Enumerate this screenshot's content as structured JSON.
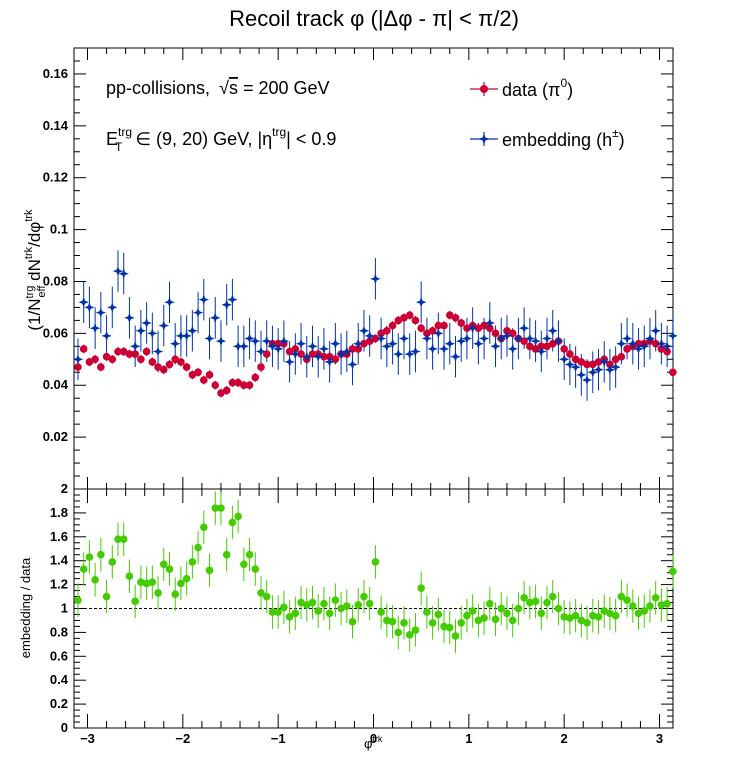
{
  "title": "Recoil track φ (|Δφ - π| < π/2)",
  "chart_data": [
    {
      "type": "scatter",
      "panel": "top",
      "ylabel": "(1/N_eff^trg) dN^trk/dφ^trk",
      "ylabel_parts": {
        "a": "(1/N",
        "b": "trg",
        "c": "eff",
        "d": " dN",
        "e": "trk",
        "f": "/dφ",
        "g": "trk"
      },
      "xlim": [
        -3.1416,
        3.1416
      ],
      "ylim": [
        0,
        0.17
      ],
      "yticks": [
        "0.02",
        "0.04",
        "0.06",
        "0.08",
        "0.1",
        "0.12",
        "0.14",
        "0.16"
      ],
      "ytick_values": [
        0.02,
        0.04,
        0.06,
        0.08,
        0.1,
        0.12,
        0.14,
        0.16
      ],
      "annotations": {
        "line1_a": "pp-collisions,",
        "line1_sqrt": "√",
        "line1_s": "s",
        "line1_b": " = 200 GeV",
        "line2_E": "E",
        "line2_T": "T",
        "line2_trg": "trg",
        "line2_mid": " ∈ (9, 20) GeV, |η",
        "line2_trg2": "trg",
        "line2_end": "| < 0.9"
      },
      "legend_placement": "top-right",
      "series": [
        {
          "name": "data (π⁰)",
          "legend_main": "data (π",
          "legend_sup": "0",
          "legend_end": ")",
          "color": "#cc0033",
          "marker": "circle",
          "x": [
            -3.1,
            -3.04,
            -2.98,
            -2.92,
            -2.86,
            -2.8,
            -2.74,
            -2.68,
            -2.62,
            -2.56,
            -2.5,
            -2.44,
            -2.38,
            -2.32,
            -2.26,
            -2.2,
            -2.14,
            -2.08,
            -2.02,
            -1.96,
            -1.9,
            -1.84,
            -1.78,
            -1.72,
            -1.66,
            -1.6,
            -1.54,
            -1.48,
            -1.42,
            -1.36,
            -1.3,
            -1.24,
            -1.18,
            -1.12,
            -1.06,
            -1.0,
            -0.94,
            -0.88,
            -0.82,
            -0.76,
            -0.7,
            -0.64,
            -0.58,
            -0.52,
            -0.46,
            -0.4,
            -0.34,
            -0.28,
            -0.22,
            -0.16,
            -0.1,
            -0.04,
            0.02,
            0.08,
            0.14,
            0.2,
            0.26,
            0.32,
            0.38,
            0.44,
            0.5,
            0.56,
            0.62,
            0.68,
            0.74,
            0.8,
            0.86,
            0.92,
            0.98,
            1.04,
            1.1,
            1.16,
            1.22,
            1.28,
            1.34,
            1.4,
            1.46,
            1.52,
            1.58,
            1.64,
            1.7,
            1.76,
            1.82,
            1.88,
            1.94,
            2.0,
            2.06,
            2.12,
            2.18,
            2.24,
            2.3,
            2.36,
            2.42,
            2.48,
            2.54,
            2.6,
            2.66,
            2.72,
            2.78,
            2.84,
            2.9,
            2.96,
            3.02,
            3.08,
            3.14
          ],
          "y": [
            0.047,
            0.054,
            0.049,
            0.05,
            0.047,
            0.051,
            0.05,
            0.053,
            0.053,
            0.052,
            0.052,
            0.05,
            0.053,
            0.049,
            0.047,
            0.046,
            0.048,
            0.05,
            0.049,
            0.047,
            0.044,
            0.045,
            0.042,
            0.044,
            0.04,
            0.037,
            0.038,
            0.041,
            0.041,
            0.04,
            0.04,
            0.043,
            0.047,
            0.052,
            0.056,
            0.056,
            0.056,
            0.053,
            0.054,
            0.052,
            0.05,
            0.052,
            0.052,
            0.051,
            0.051,
            0.05,
            0.052,
            0.052,
            0.054,
            0.054,
            0.056,
            0.057,
            0.058,
            0.06,
            0.061,
            0.063,
            0.065,
            0.066,
            0.067,
            0.065,
            0.062,
            0.06,
            0.061,
            0.063,
            0.063,
            0.067,
            0.066,
            0.064,
            0.062,
            0.063,
            0.062,
            0.063,
            0.062,
            0.06,
            0.058,
            0.061,
            0.06,
            0.058,
            0.057,
            0.055,
            0.054,
            0.055,
            0.055,
            0.056,
            0.057,
            0.054,
            0.052,
            0.05,
            0.049,
            0.048,
            0.048,
            0.049,
            0.05,
            0.048,
            0.05,
            0.051,
            0.054,
            0.055,
            0.056,
            0.056,
            0.057,
            0.056,
            0.054,
            0.053,
            0.045
          ],
          "yerr": 0.0017
        },
        {
          "name": "embedding (h±)",
          "legend_main": "embedding (h",
          "legend_sup": "±",
          "legend_end": ")",
          "color": "#0033aa",
          "marker": "star",
          "x": [
            -3.1,
            -3.04,
            -2.98,
            -2.92,
            -2.86,
            -2.8,
            -2.74,
            -2.68,
            -2.62,
            -2.56,
            -2.5,
            -2.44,
            -2.38,
            -2.32,
            -2.26,
            -2.2,
            -2.14,
            -2.08,
            -2.02,
            -1.96,
            -1.9,
            -1.84,
            -1.78,
            -1.72,
            -1.66,
            -1.6,
            -1.54,
            -1.48,
            -1.42,
            -1.36,
            -1.3,
            -1.24,
            -1.18,
            -1.12,
            -1.06,
            -1.0,
            -0.94,
            -0.88,
            -0.82,
            -0.76,
            -0.7,
            -0.64,
            -0.58,
            -0.52,
            -0.46,
            -0.4,
            -0.34,
            -0.28,
            -0.22,
            -0.16,
            -0.1,
            -0.04,
            0.02,
            0.08,
            0.14,
            0.2,
            0.26,
            0.32,
            0.38,
            0.44,
            0.5,
            0.56,
            0.62,
            0.68,
            0.74,
            0.8,
            0.86,
            0.92,
            0.98,
            1.04,
            1.1,
            1.16,
            1.22,
            1.28,
            1.34,
            1.4,
            1.46,
            1.52,
            1.58,
            1.64,
            1.7,
            1.76,
            1.82,
            1.88,
            1.94,
            2.0,
            2.06,
            2.12,
            2.18,
            2.24,
            2.3,
            2.36,
            2.42,
            2.48,
            2.54,
            2.6,
            2.66,
            2.72,
            2.78,
            2.84,
            2.9,
            2.96,
            3.02,
            3.08,
            3.14
          ],
          "y": [
            0.05,
            0.072,
            0.07,
            0.062,
            0.068,
            0.059,
            0.07,
            0.084,
            0.083,
            0.066,
            0.055,
            0.061,
            0.064,
            0.06,
            0.053,
            0.063,
            0.072,
            0.056,
            0.059,
            0.059,
            0.061,
            0.068,
            0.073,
            0.058,
            0.066,
            0.057,
            0.071,
            0.073,
            0.055,
            0.055,
            0.058,
            0.057,
            0.053,
            0.057,
            0.055,
            0.054,
            0.057,
            0.049,
            0.052,
            0.056,
            0.051,
            0.055,
            0.051,
            0.054,
            0.049,
            0.056,
            0.052,
            0.053,
            0.048,
            0.056,
            0.061,
            0.059,
            0.081,
            0.058,
            0.055,
            0.056,
            0.052,
            0.058,
            0.052,
            0.053,
            0.072,
            0.058,
            0.054,
            0.06,
            0.054,
            0.056,
            0.051,
            0.057,
            0.058,
            0.062,
            0.056,
            0.058,
            0.064,
            0.055,
            0.058,
            0.059,
            0.054,
            0.058,
            0.062,
            0.058,
            0.057,
            0.053,
            0.058,
            0.061,
            0.057,
            0.05,
            0.048,
            0.047,
            0.044,
            0.042,
            0.045,
            0.046,
            0.049,
            0.046,
            0.047,
            0.056,
            0.058,
            0.056,
            0.054,
            0.055,
            0.058,
            0.061,
            0.056,
            0.055,
            0.059
          ],
          "yerr": 0.008
        }
      ]
    },
    {
      "type": "scatter",
      "panel": "bottom",
      "xlabel": "φ",
      "xlabel_sup": "trk",
      "ylabel": "embedding / data",
      "xlim": [
        -3.1416,
        3.1416
      ],
      "ylim": [
        0,
        2
      ],
      "xticks": [
        "−3",
        "−2",
        "−1",
        "0",
        "1",
        "2",
        "3"
      ],
      "xtick_values": [
        -3,
        -2,
        -1,
        0,
        1,
        2,
        3
      ],
      "yticks": [
        "0",
        "0.2",
        "0.4",
        "0.6",
        "0.8",
        "1",
        "1.2",
        "1.4",
        "1.6",
        "1.8",
        "2"
      ],
      "ytick_values": [
        0,
        0.2,
        0.4,
        0.6,
        0.8,
        1.0,
        1.2,
        1.4,
        1.6,
        1.8,
        2.0
      ],
      "reference_line": 1.0,
      "series": [
        {
          "name": "embedding / data",
          "color": "#44cc00",
          "marker": "circle",
          "x": [
            -3.1,
            -3.04,
            -2.98,
            -2.92,
            -2.86,
            -2.8,
            -2.74,
            -2.68,
            -2.62,
            -2.56,
            -2.5,
            -2.44,
            -2.38,
            -2.32,
            -2.26,
            -2.2,
            -2.14,
            -2.08,
            -2.02,
            -1.96,
            -1.9,
            -1.84,
            -1.78,
            -1.72,
            -1.66,
            -1.6,
            -1.54,
            -1.48,
            -1.42,
            -1.36,
            -1.3,
            -1.24,
            -1.18,
            -1.12,
            -1.06,
            -1.0,
            -0.94,
            -0.88,
            -0.82,
            -0.76,
            -0.7,
            -0.64,
            -0.58,
            -0.52,
            -0.46,
            -0.4,
            -0.34,
            -0.28,
            -0.22,
            -0.16,
            -0.1,
            -0.04,
            0.02,
            0.08,
            0.14,
            0.2,
            0.26,
            0.32,
            0.38,
            0.44,
            0.5,
            0.56,
            0.62,
            0.68,
            0.74,
            0.8,
            0.86,
            0.92,
            0.98,
            1.04,
            1.1,
            1.16,
            1.22,
            1.28,
            1.34,
            1.4,
            1.46,
            1.52,
            1.58,
            1.64,
            1.7,
            1.76,
            1.82,
            1.88,
            1.94,
            2.0,
            2.06,
            2.12,
            2.18,
            2.24,
            2.3,
            2.36,
            2.42,
            2.48,
            2.54,
            2.6,
            2.66,
            2.72,
            2.78,
            2.84,
            2.9,
            2.96,
            3.02,
            3.08,
            3.14
          ],
          "y": [
            1.07,
            1.33,
            1.43,
            1.24,
            1.45,
            1.1,
            1.39,
            1.58,
            1.58,
            1.27,
            1.06,
            1.22,
            1.21,
            1.22,
            1.13,
            1.37,
            1.33,
            1.12,
            1.21,
            1.25,
            1.39,
            1.51,
            1.68,
            1.32,
            1.84,
            1.84,
            1.45,
            1.72,
            1.77,
            1.37,
            1.45,
            1.33,
            1.13,
            1.1,
            0.97,
            0.97,
            1.01,
            0.93,
            0.96,
            1.05,
            1.03,
            1.05,
            0.98,
            1.04,
            0.96,
            1.07,
            1.0,
            1.02,
            0.89,
            1.03,
            1.1,
            1.04,
            1.39,
            0.97,
            0.9,
            0.89,
            0.8,
            0.88,
            0.78,
            0.82,
            1.17,
            0.97,
            0.88,
            0.95,
            0.85,
            0.84,
            0.77,
            0.88,
            0.94,
            0.98,
            0.9,
            0.92,
            1.04,
            0.91,
            1.0,
            0.96,
            0.9,
            1.0,
            1.09,
            1.05,
            1.06,
            0.96,
            1.05,
            1.1,
            1.0,
            0.93,
            0.92,
            0.94,
            0.9,
            0.88,
            0.94,
            0.93,
            0.98,
            0.96,
            0.94,
            1.1,
            1.07,
            1.02,
            0.96,
            0.98,
            1.02,
            1.09,
            1.03,
            1.04,
            1.31
          ],
          "yerr": 0.14
        }
      ]
    }
  ]
}
